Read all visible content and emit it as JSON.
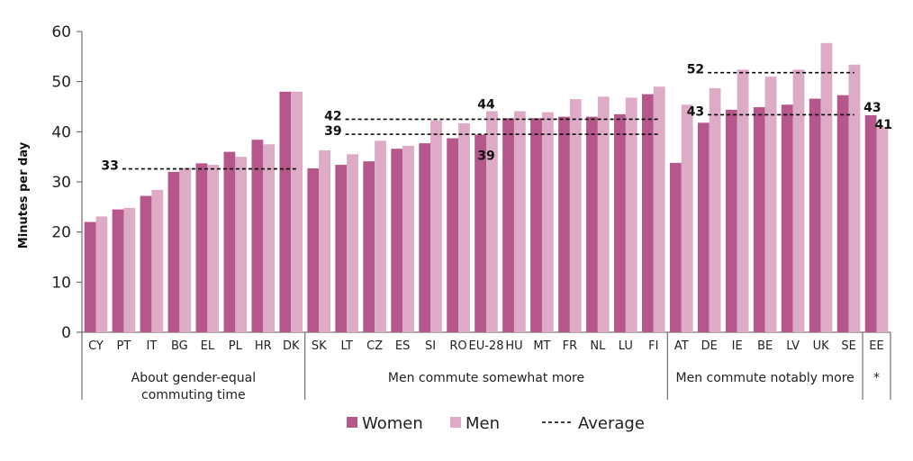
{
  "chart_data": {
    "type": "bar",
    "ylabel": "Minutes per day",
    "ylim": [
      0,
      60
    ],
    "yticks": [
      0,
      10,
      20,
      30,
      40,
      50,
      60
    ],
    "categories": [
      "CY",
      "PT",
      "IT",
      "BG",
      "EL",
      "PL",
      "HR",
      "DK",
      "SK",
      "LT",
      "CZ",
      "ES",
      "SI",
      "RO",
      "EU-28",
      "HU",
      "MT",
      "FR",
      "NL",
      "LU",
      "FI",
      "AT",
      "DE",
      "IE",
      "BE",
      "LV",
      "UK",
      "SE",
      "EE"
    ],
    "series": [
      {
        "name": "Women",
        "color": "#b5578a",
        "values": [
          22,
          24.5,
          27.2,
          32,
          33.7,
          36,
          38.4,
          48,
          32.7,
          33.4,
          34.1,
          36.6,
          37.7,
          38.7,
          39.4,
          42.7,
          42.7,
          43,
          43,
          43.5,
          47.5,
          33.8,
          41.8,
          44.4,
          44.9,
          45.4,
          46.6,
          47.3,
          43.3
        ]
      },
      {
        "name": "Men",
        "color": "#deabc6",
        "values": [
          23.1,
          24.8,
          28.4,
          32.8,
          33.4,
          35,
          37.5,
          48,
          36.3,
          35.5,
          38.2,
          37.2,
          42.3,
          41.7,
          44.1,
          44.1,
          43.9,
          46.5,
          47,
          46.8,
          49,
          45.4,
          48.7,
          52.4,
          51,
          52.4,
          57.7,
          53.4,
          41
        ]
      }
    ],
    "groups": [
      {
        "label_lines": [
          "About gender-equal",
          "commuting time"
        ],
        "categories": [
          "CY",
          "PT",
          "IT",
          "BG",
          "EL",
          "PL",
          "HR",
          "DK"
        ]
      },
      {
        "label_lines": [
          "Men commute somewhat more"
        ],
        "categories": [
          "SK",
          "LT",
          "CZ",
          "ES",
          "SI",
          "RO",
          "EU-28",
          "HU",
          "MT",
          "FR",
          "NL",
          "LU",
          "FI"
        ]
      },
      {
        "label_lines": [
          "Men commute notably more"
        ],
        "categories": [
          "AT",
          "DE",
          "IE",
          "BE",
          "LV",
          "UK",
          "SE"
        ]
      },
      {
        "label_lines": [
          "*"
        ],
        "categories": [
          "EE"
        ]
      }
    ],
    "averages": [
      {
        "value": 32.6,
        "label": "33",
        "from": "CY",
        "to": "DK"
      },
      {
        "value": 42.5,
        "label": "42",
        "from": "SK",
        "to": "FI"
      },
      {
        "value": 39.5,
        "label": "39",
        "from": "SK",
        "to": "FI"
      },
      {
        "value": 51.8,
        "label": "52",
        "from": "AT",
        "to": "SE"
      },
      {
        "value": 43.4,
        "label": "43",
        "from": "AT",
        "to": "SE"
      }
    ],
    "data_labels": [
      {
        "text": "44",
        "category": "EU-28",
        "value": 44.1
      },
      {
        "text": "39",
        "category": "EU-28",
        "value": 39.4
      },
      {
        "text": "43",
        "category": "EE",
        "value": 43.3
      },
      {
        "text": "41",
        "category": "EE",
        "value": 41
      }
    ],
    "legend": {
      "position": "bottom",
      "items": [
        {
          "label": "Women",
          "kind": "box",
          "color": "#b5578a"
        },
        {
          "label": "Men",
          "kind": "box",
          "color": "#deabc6"
        },
        {
          "label": "Average",
          "kind": "dashed-line",
          "color": "#000000"
        }
      ]
    }
  }
}
